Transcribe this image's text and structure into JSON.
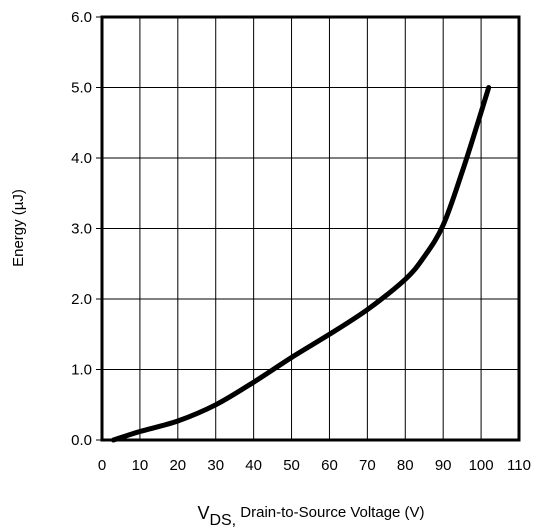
{
  "chart_data": {
    "type": "line",
    "title": "",
    "xlabel_prefix": "V",
    "xlabel_sub": "DS,",
    "xlabel_rest": " Drain-to-Source Voltage (V)",
    "ylabel": "Energy (µJ)",
    "xlim": [
      0,
      110
    ],
    "ylim": [
      0,
      6
    ],
    "x_ticks": [
      "0",
      "10",
      "20",
      "30",
      "40",
      "50",
      "60",
      "70",
      "80",
      "90",
      "100",
      "110"
    ],
    "y_ticks": [
      "0.0",
      "1.0",
      "2.0",
      "3.0",
      "4.0",
      "5.0",
      "6.0"
    ],
    "grid": true,
    "series": [
      {
        "x": [
          3,
          10,
          20,
          30,
          40,
          50,
          60,
          70,
          80,
          85,
          90,
          95,
          100,
          102
        ],
        "y": [
          0.0,
          0.12,
          0.27,
          0.5,
          0.82,
          1.17,
          1.5,
          1.85,
          2.28,
          2.6,
          3.05,
          3.8,
          4.65,
          5.0
        ]
      }
    ]
  }
}
